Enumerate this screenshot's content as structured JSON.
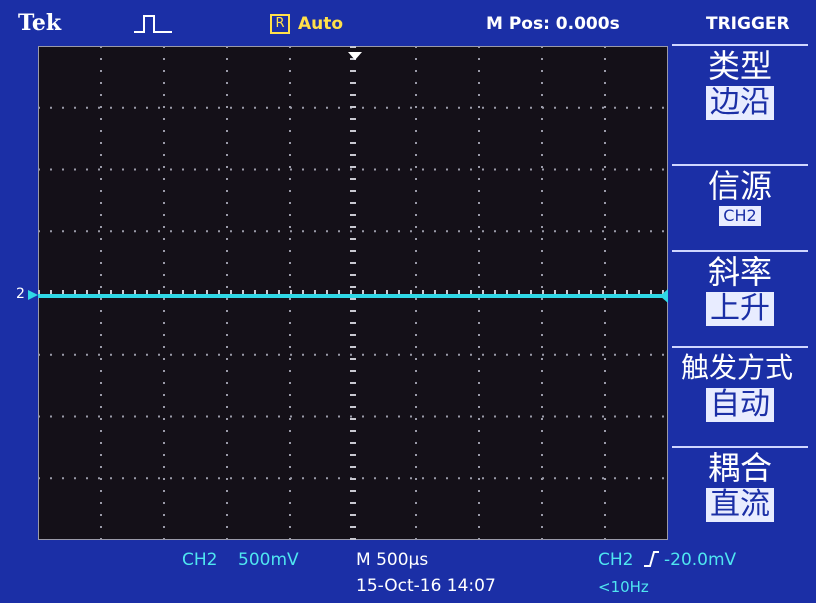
{
  "header": {
    "brand": "Tek",
    "trigger_status": "Auto",
    "run_icon": "R",
    "position": "M Pos: 0.000s",
    "menu_title": "TRIGGER"
  },
  "menu": [
    {
      "label": "类型",
      "value": "边沿"
    },
    {
      "label": "信源",
      "value": "CH2"
    },
    {
      "label": "斜率",
      "value": "上升"
    },
    {
      "label": "触发方式",
      "value": "自动"
    },
    {
      "label": "耦合",
      "value": "直流"
    }
  ],
  "channel_marker": "2",
  "footer": {
    "channel": "CH2",
    "volts_per_div": "500mV",
    "timebase": "M 500µs",
    "trigger_channel": "CH2",
    "trigger_level": "-20.0mV",
    "datetime": "15-Oct-16 14:07",
    "frequency": "<10Hz"
  }
}
